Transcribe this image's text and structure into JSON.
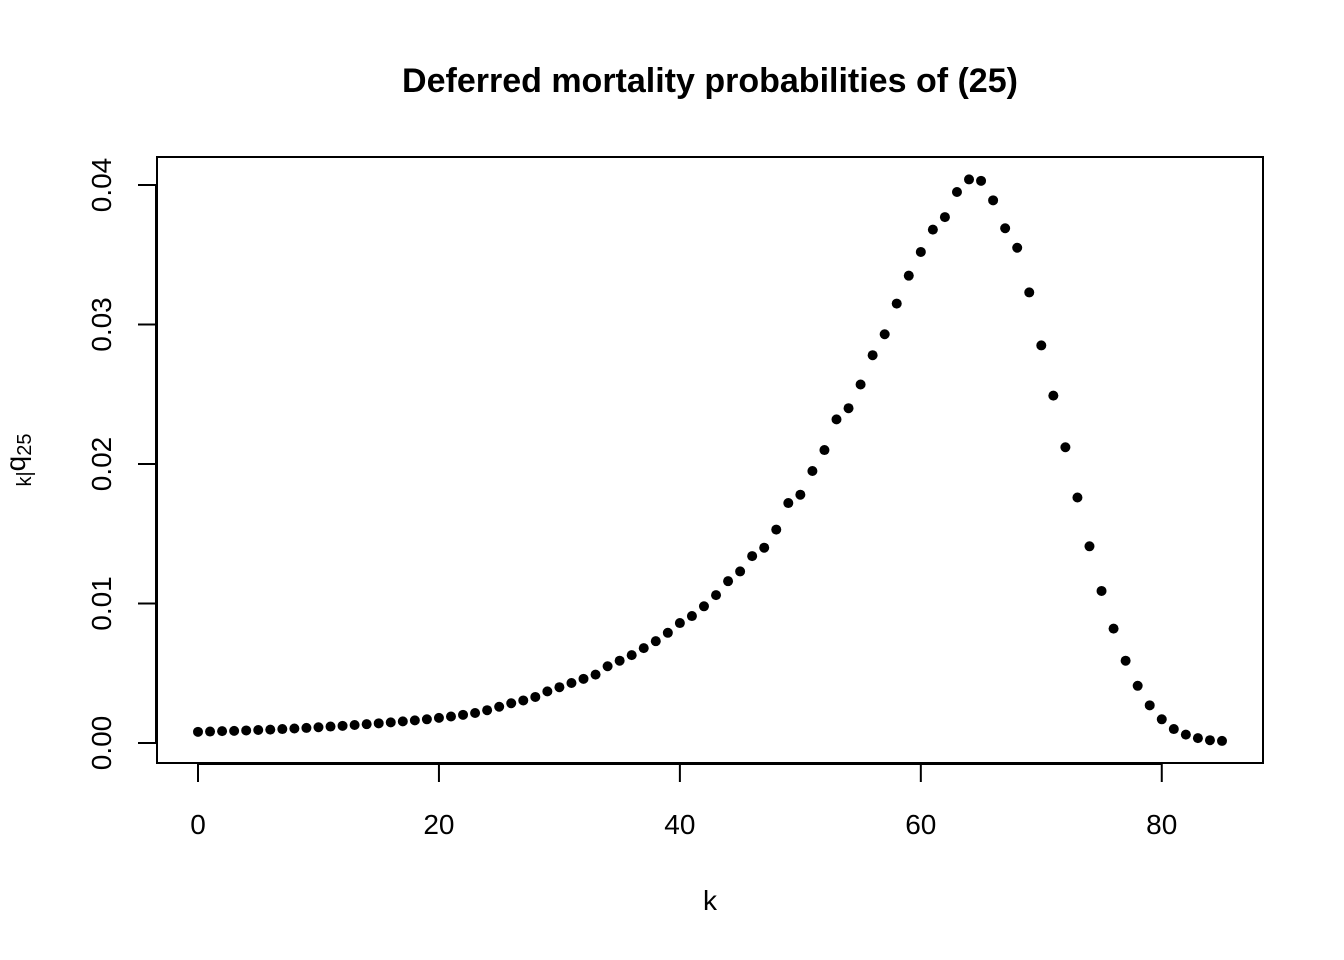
{
  "chart_data": {
    "type": "scatter",
    "title": "Deferred mortality probabilities of (25)",
    "xlabel": "k",
    "ylabel": {
      "prefix": "k|",
      "main": "q",
      "subscript": "25"
    },
    "xlim": [
      0,
      85
    ],
    "ylim": [
      0,
      0.04
    ],
    "x_ticks": [
      0,
      20,
      40,
      60,
      80
    ],
    "x_tick_labels": [
      "0",
      "20",
      "40",
      "60",
      "80"
    ],
    "y_ticks": [
      0,
      0.01,
      0.02,
      0.03,
      0.04
    ],
    "y_tick_labels": [
      "0.00",
      "0.01",
      "0.02",
      "0.03",
      "0.04"
    ],
    "grid": false,
    "marker_color": "#000000",
    "x": [
      0,
      1,
      2,
      3,
      4,
      5,
      6,
      7,
      8,
      9,
      10,
      11,
      12,
      13,
      14,
      15,
      16,
      17,
      18,
      19,
      20,
      21,
      22,
      23,
      24,
      25,
      26,
      27,
      28,
      29,
      30,
      31,
      32,
      33,
      34,
      35,
      36,
      37,
      38,
      39,
      40,
      41,
      42,
      43,
      44,
      45,
      46,
      47,
      48,
      49,
      50,
      51,
      52,
      53,
      54,
      55,
      56,
      57,
      58,
      59,
      60,
      61,
      62,
      63,
      64,
      65,
      66,
      67,
      68,
      69,
      70,
      71,
      72,
      73,
      74,
      75,
      76,
      77,
      78,
      79,
      80,
      81,
      82,
      83,
      84,
      85
    ],
    "y": [
      0.0008,
      0.00082,
      0.00085,
      0.00087,
      0.0009,
      0.00093,
      0.00096,
      0.001,
      0.00104,
      0.00108,
      0.00113,
      0.00118,
      0.00123,
      0.00129,
      0.00135,
      0.00141,
      0.00148,
      0.00155,
      0.00162,
      0.0017,
      0.0018,
      0.0019,
      0.00202,
      0.00215,
      0.00235,
      0.0026,
      0.00285,
      0.00305,
      0.0033,
      0.0037,
      0.004,
      0.0043,
      0.0046,
      0.0049,
      0.0055,
      0.0059,
      0.0063,
      0.0068,
      0.0073,
      0.0079,
      0.0086,
      0.0091,
      0.0098,
      0.0106,
      0.0116,
      0.0123,
      0.0134,
      0.014,
      0.0153,
      0.0172,
      0.0178,
      0.0195,
      0.021,
      0.0232,
      0.024,
      0.0257,
      0.0278,
      0.0293,
      0.0315,
      0.0335,
      0.0352,
      0.0368,
      0.0377,
      0.0395,
      0.0404,
      0.0403,
      0.0389,
      0.0369,
      0.0355,
      0.0323,
      0.0285,
      0.0249,
      0.0212,
      0.0176,
      0.0141,
      0.0109,
      0.0082,
      0.0059,
      0.0041,
      0.0027,
      0.0017,
      0.001,
      0.0006,
      0.00035,
      0.0002,
      0.00015
    ]
  }
}
